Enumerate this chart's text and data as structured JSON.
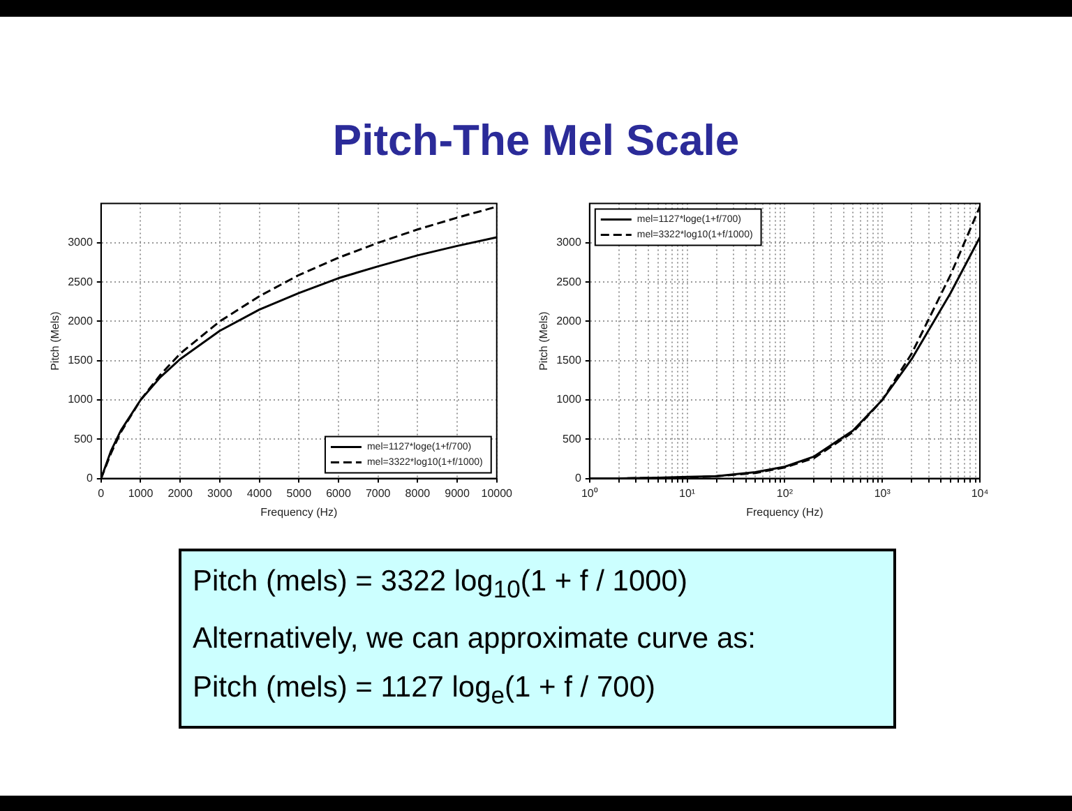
{
  "chart_data": [
    {
      "type": "line",
      "title": "Pitch-The Mel Scale",
      "xlabel": "Frequency (Hz)",
      "ylabel": "Pitch (Mels)",
      "xlim": [
        0,
        10000
      ],
      "xticks": [
        0,
        1000,
        2000,
        3000,
        4000,
        5000,
        6000,
        7000,
        8000,
        9000,
        10000
      ],
      "ylim": [
        0,
        3500
      ],
      "yticks": [
        0,
        500,
        1000,
        1500,
        2000,
        2500,
        3000
      ],
      "grid": true,
      "legend": "bottom right",
      "marker": "none",
      "series": [
        {
          "name": "mel=1127*loge(1+f/700)",
          "color": "#000000",
          "line_style": "solid",
          "x": [
            0,
            250,
            500,
            1000,
            1500,
            2000,
            3000,
            4000,
            5000,
            6000,
            7000,
            8000,
            9000,
            10000
          ],
          "values": [
            0,
            350,
            610,
            1000,
            1290,
            1520,
            1880,
            2150,
            2360,
            2550,
            2700,
            2840,
            2960,
            3070
          ]
        },
        {
          "name": "mel=3322*log10(1+f/1000)",
          "color": "#000000",
          "line_style": "dashed",
          "x": [
            0,
            250,
            500,
            1000,
            1500,
            2000,
            3000,
            4000,
            5000,
            6000,
            7000,
            8000,
            9000,
            10000
          ],
          "values": [
            0,
            320,
            590,
            1000,
            1320,
            1590,
            2000,
            2320,
            2590,
            2810,
            3000,
            3170,
            3320,
            3460
          ]
        }
      ]
    },
    {
      "type": "line",
      "xlabel": "Frequency (Hz)",
      "ylabel": "Pitch (Mels)",
      "log": "x",
      "xlim": [
        1,
        10000
      ],
      "xticks": [
        {
          "value": 1,
          "label": "10⁰"
        },
        {
          "value": 2,
          "label": null
        },
        {
          "value": 3,
          "label": null
        },
        {
          "value": 4,
          "label": null
        },
        {
          "value": 5,
          "label": null
        },
        {
          "value": 6,
          "label": null
        },
        {
          "value": 7,
          "label": null
        },
        {
          "value": 8,
          "label": null
        },
        {
          "value": 9,
          "label": null
        },
        {
          "value": 10,
          "label": "10¹"
        },
        {
          "value": 20,
          "label": null
        },
        {
          "value": 30,
          "label": null
        },
        {
          "value": 40,
          "label": null
        },
        {
          "value": 50,
          "label": null
        },
        {
          "value": 60,
          "label": null
        },
        {
          "value": 70,
          "label": null
        },
        {
          "value": 80,
          "label": null
        },
        {
          "value": 90,
          "label": null
        },
        {
          "value": 100,
          "label": "10²"
        },
        {
          "value": 200,
          "label": null
        },
        {
          "value": 300,
          "label": null
        },
        {
          "value": 400,
          "label": null
        },
        {
          "value": 500,
          "label": null
        },
        {
          "value": 600,
          "label": null
        },
        {
          "value": 700,
          "label": null
        },
        {
          "value": 800,
          "label": null
        },
        {
          "value": 900,
          "label": null
        },
        {
          "value": 1000,
          "label": "10³"
        },
        {
          "value": 2000,
          "label": null
        },
        {
          "value": 3000,
          "label": null
        },
        {
          "value": 4000,
          "label": null
        },
        {
          "value": 5000,
          "label": null
        },
        {
          "value": 6000,
          "label": null
        },
        {
          "value": 7000,
          "label": null
        },
        {
          "value": 8000,
          "label": null
        },
        {
          "value": 9000,
          "label": null
        },
        {
          "value": 10000,
          "label": "10⁴"
        }
      ],
      "ylim": [
        0,
        3500
      ],
      "yticks": [
        0,
        500,
        1000,
        1500,
        2000,
        2500,
        3000
      ],
      "grid": true,
      "legend": "top left",
      "marker": "none",
      "series": [
        {
          "name": "mel=1127*loge(1+f/700)",
          "color": "#000000",
          "line_style": "solid",
          "x": [
            1,
            2,
            5,
            10,
            20,
            50,
            100,
            200,
            500,
            1000,
            2000,
            5000,
            10000
          ],
          "values": [
            0,
            0,
            10,
            20,
            30,
            80,
            150,
            280,
            610,
            1000,
            1520,
            2360,
            3070
          ]
        },
        {
          "name": "mel=3322*log10(1+f/1000)",
          "color": "#000000",
          "line_style": "dashed",
          "x": [
            1,
            2,
            5,
            10,
            20,
            50,
            100,
            200,
            500,
            1000,
            2000,
            5000,
            10000
          ],
          "values": [
            0,
            0,
            10,
            10,
            30,
            70,
            140,
            260,
            590,
            1000,
            1590,
            2590,
            3460
          ]
        }
      ]
    },
    {
      "type": "other",
      "annotations": [
        "Pitch (mels) = 3322 log$_{10}$(1 + f / 1000)",
        "Alternatively, we can approximate curve as:",
        "Pitch (mels) = 1127 log$_{e}$(1 + f / 700)"
      ]
    }
  ]
}
